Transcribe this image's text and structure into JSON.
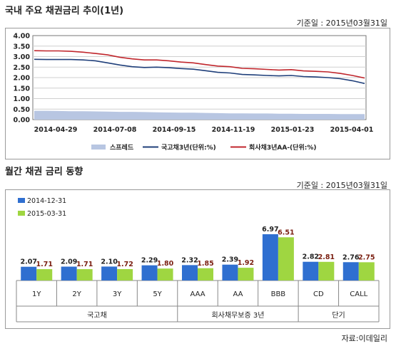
{
  "top": {
    "title": "국내 주요 채권금리 추이(1년)",
    "date": "기준일 : 2015년03월31일"
  },
  "bottom": {
    "title": "월간 채권 금리 동향",
    "date": "기준일 : 2015년03월31일"
  },
  "source": "자료:이데일리",
  "colors": {
    "spread": "#b8c6e2",
    "govt": "#1f3f7a",
    "corp": "#c0262c",
    "bar2014": "#2f6fd0",
    "bar2015": "#9fd641"
  },
  "chart_data": [
    {
      "type": "line",
      "ylim": [
        0,
        4.0
      ],
      "yticks": [
        "4.00",
        "3.50",
        "3.00",
        "2.50",
        "2.00",
        "1.50",
        "1.00",
        "0.50",
        "0.00"
      ],
      "xticks": [
        "2014-04-29",
        "2014-07-08",
        "2014-09-15",
        "2014-11-19",
        "2015-01-23",
        "2015-04-01"
      ],
      "series": [
        {
          "name": "스프레드",
          "kind": "area",
          "values": [
            0.42,
            0.42,
            0.41,
            0.4,
            0.4,
            0.39,
            0.38,
            0.37,
            0.37,
            0.36,
            0.35,
            0.34,
            0.33,
            0.33,
            0.32,
            0.31,
            0.3,
            0.3,
            0.29,
            0.29,
            0.28,
            0.28,
            0.27,
            0.27,
            0.27,
            0.26,
            0.26,
            0.26
          ]
        },
        {
          "name": "국고채3년(단위:%)",
          "kind": "line",
          "values": [
            2.87,
            2.86,
            2.86,
            2.86,
            2.84,
            2.8,
            2.7,
            2.6,
            2.52,
            2.48,
            2.5,
            2.47,
            2.43,
            2.4,
            2.33,
            2.25,
            2.22,
            2.15,
            2.13,
            2.1,
            2.08,
            2.1,
            2.05,
            2.03,
            2.0,
            1.95,
            1.85,
            1.72
          ]
        },
        {
          "name": "회사채3년AA-(단위:%)",
          "kind": "line",
          "values": [
            3.28,
            3.27,
            3.27,
            3.25,
            3.21,
            3.15,
            3.08,
            2.97,
            2.89,
            2.84,
            2.84,
            2.8,
            2.74,
            2.7,
            2.62,
            2.55,
            2.52,
            2.44,
            2.42,
            2.39,
            2.36,
            2.38,
            2.32,
            2.3,
            2.27,
            2.2,
            2.1,
            1.98
          ]
        }
      ]
    },
    {
      "type": "bar",
      "categories": [
        "1Y",
        "2Y",
        "3Y",
        "5Y",
        "AAA",
        "AA",
        "BBB",
        "CD",
        "CALL"
      ],
      "groups": [
        {
          "label": "국고채",
          "span": [
            0,
            3
          ]
        },
        {
          "label": "회사채무보증 3년",
          "span": [
            4,
            6
          ]
        },
        {
          "label": "단기",
          "span": [
            7,
            8
          ]
        }
      ],
      "series": [
        {
          "name": "2014-12-31",
          "values": [
            2.07,
            2.09,
            2.1,
            2.29,
            2.32,
            2.39,
            6.97,
            2.82,
            2.76
          ],
          "labels": [
            "2.07",
            "2.09",
            "2.10",
            "2.29",
            "2.32",
            "2.39",
            "6.97",
            "2.82",
            "2.76"
          ]
        },
        {
          "name": "2015-03-31",
          "values": [
            1.71,
            1.71,
            1.72,
            1.8,
            1.85,
            1.92,
            6.51,
            2.81,
            2.75
          ],
          "labels": [
            "1.71",
            "1.71",
            "1.72",
            "1.80",
            "1.85",
            "1.92",
            "6.51",
            "2.81",
            "2.75"
          ]
        }
      ]
    }
  ]
}
